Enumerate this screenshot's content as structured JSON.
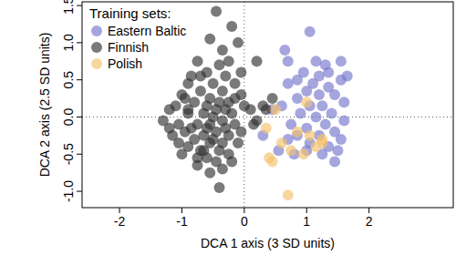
{
  "chart_data": {
    "type": "scatter",
    "x_label": "DCA 1 axis (3 SD units)",
    "y_label": "DCA 2 axis (2.5 SD units)",
    "legend_title": "Training sets:",
    "legend": "top-left",
    "xlim": [
      -2.6,
      3.35
    ],
    "ylim": [
      -1.22,
      1.55
    ],
    "xticks": [
      -2,
      -1,
      0,
      1,
      2
    ],
    "yticks": [
      {
        "value": -1,
        "label": "-1.0"
      },
      -0.5,
      {
        "value": 0,
        "label": "0.0"
      },
      0.5,
      {
        "value": 1,
        "label": "1.0"
      },
      1.5
    ],
    "hlines": [
      0
    ],
    "vlines": [
      0
    ],
    "series": [
      {
        "name": "Eastern Baltic",
        "color": "#7777cc",
        "marker": "circle",
        "x": [
          1.05,
          0.65,
          0.7,
          1.55,
          1.3,
          1.65,
          1.2,
          0.85,
          1.55,
          1.1,
          1.35,
          0.7,
          1.0,
          1.45,
          1.2,
          0.85,
          1.6,
          1.25,
          1.05,
          0.6,
          1.4,
          0.9,
          1.15,
          1.6,
          1.3,
          0.75,
          1.0,
          1.45,
          1.2,
          0.85,
          1.55,
          1.05,
          1.35,
          0.55,
          1.0,
          0.8,
          1.25,
          1.45,
          0.3,
          0.45,
          1.35,
          1.15,
          0.95,
          1.5,
          0.7
        ],
        "values": [
          1.15,
          0.9,
          0.75,
          0.75,
          0.7,
          0.55,
          0.55,
          0.5,
          0.5,
          0.45,
          0.4,
          0.45,
          0.35,
          0.3,
          0.3,
          0.25,
          0.2,
          0.15,
          0.15,
          0.15,
          0.05,
          0.05,
          0.0,
          -0.05,
          -0.1,
          -0.1,
          -0.15,
          -0.2,
          -0.25,
          -0.25,
          -0.3,
          -0.35,
          -0.4,
          -0.45,
          -0.45,
          -0.5,
          -0.5,
          -0.6,
          -0.25,
          0.1,
          0.6,
          0.75,
          0.6,
          -0.45,
          -0.3
        ]
      },
      {
        "name": "Finnish",
        "color": "#333333",
        "marker": "circle",
        "x": [
          -0.45,
          -0.2,
          -0.55,
          -0.1,
          -0.35,
          0.2,
          -0.75,
          -0.4,
          -0.05,
          -0.6,
          -0.3,
          -0.15,
          -0.9,
          -0.5,
          -0.7,
          -0.35,
          -0.05,
          -1.0,
          -0.55,
          -0.25,
          -0.8,
          -1.1,
          0.3,
          0.1,
          -0.45,
          -0.65,
          -0.9,
          -0.2,
          -1.3,
          -0.35,
          -0.75,
          -0.55,
          -1.05,
          -0.15,
          -0.95,
          -0.45,
          -0.25,
          -0.65,
          -1.15,
          -0.8,
          -0.35,
          -0.55,
          -0.1,
          -0.9,
          -0.7,
          -0.4,
          -0.25,
          -1.0,
          -0.6,
          -0.45,
          -0.35,
          -0.75,
          -0.55,
          -0.4,
          -0.85,
          -1.2,
          -0.6,
          -0.3,
          0.0,
          0.2,
          -0.5,
          -0.85,
          -0.2,
          -0.65,
          -0.5,
          -1.05,
          -0.9,
          -0.15,
          -0.7,
          -0.25,
          -0.4,
          -0.6,
          0.35,
          0.45,
          0.15,
          -0.05,
          -0.75,
          -1.2,
          -0.95,
          -0.3
        ],
        "values": [
          1.42,
          1.22,
          1.05,
          1.0,
          0.9,
          0.75,
          0.75,
          0.7,
          0.6,
          0.6,
          0.55,
          0.45,
          0.45,
          0.45,
          0.35,
          0.35,
          0.3,
          0.3,
          0.25,
          0.2,
          0.2,
          0.15,
          0.15,
          0.1,
          0.1,
          0.05,
          0.05,
          0.05,
          -0.05,
          -0.05,
          -0.1,
          -0.1,
          -0.1,
          -0.1,
          -0.2,
          -0.2,
          -0.25,
          -0.25,
          -0.25,
          -0.3,
          -0.35,
          -0.35,
          -0.35,
          -0.4,
          -0.45,
          -0.45,
          -0.5,
          -0.5,
          -0.55,
          -0.6,
          -0.7,
          -0.65,
          -0.75,
          -0.95,
          0.55,
          0.1,
          0.15,
          0.1,
          0.15,
          -0.05,
          0.0,
          -0.15,
          -0.6,
          -0.45,
          -0.3,
          -0.35,
          0.1,
          0.25,
          0.55,
          0.75,
          0.2,
          -0.15,
          0.1,
          0.25,
          -0.1,
          -0.2,
          -0.55,
          -0.15,
          0.25,
          -0.15
        ]
      },
      {
        "name": "Polish",
        "color": "#f5c26b",
        "marker": "circle",
        "x": [
          1.0,
          0.5,
          0.85,
          1.25,
          0.6,
          1.15,
          1.25,
          0.4,
          0.75,
          0.95,
          0.45,
          1.05,
          0.7,
          0.35
        ],
        "values": [
          0.2,
          0.1,
          -0.2,
          -0.35,
          -0.35,
          -0.4,
          -0.3,
          -0.55,
          -0.45,
          -0.5,
          -0.6,
          -0.25,
          -1.05,
          -0.15
        ]
      }
    ]
  }
}
